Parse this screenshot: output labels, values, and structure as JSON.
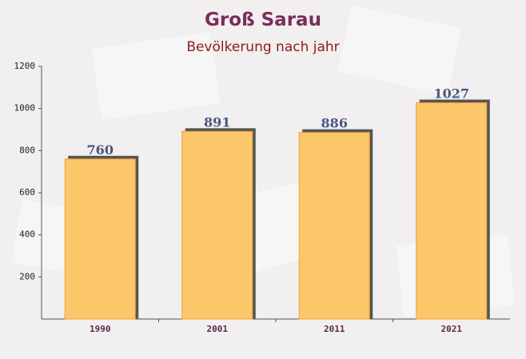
{
  "chart_data": {
    "type": "bar",
    "title": "Groß Sarau",
    "subtitle": "Bevölkerung nach jahr",
    "categories": [
      "1990",
      "2001",
      "2011",
      "2021"
    ],
    "values": [
      760,
      891,
      886,
      1027
    ],
    "color": "#fcc76a",
    "ylim": [
      0,
      1200
    ],
    "yticks": [
      200,
      400,
      600,
      800,
      1000,
      1200
    ]
  }
}
